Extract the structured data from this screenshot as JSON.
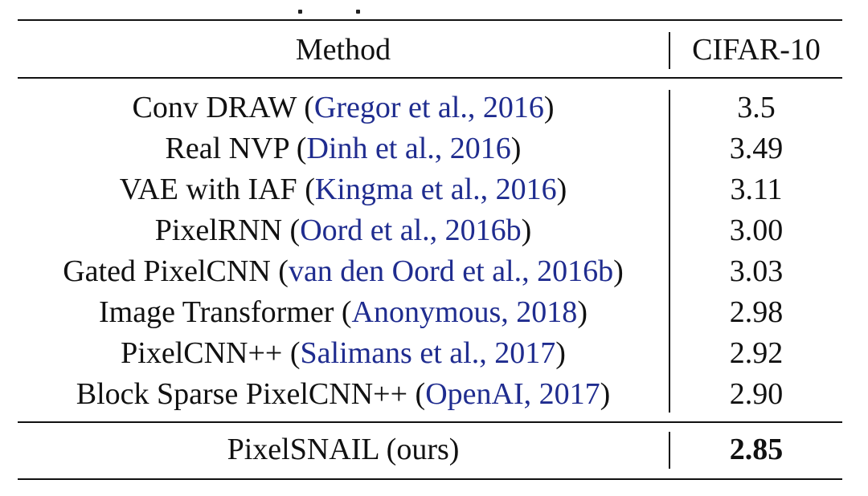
{
  "table": {
    "header": {
      "method": "Method",
      "dataset": "CIFAR-10"
    },
    "rows": [
      {
        "method": "Conv DRAW",
        "citation": "Gregor et al., 2016",
        "score": "3.5"
      },
      {
        "method": "Real NVP",
        "citation": "Dinh et al., 2016",
        "score": "3.49"
      },
      {
        "method": "VAE with IAF",
        "citation": "Kingma et al., 2016",
        "score": "3.11"
      },
      {
        "method": "PixelRNN",
        "citation": "Oord et al., 2016b",
        "score": "3.00"
      },
      {
        "method": "Gated PixelCNN",
        "citation": "van den Oord et al., 2016b",
        "score": "3.03"
      },
      {
        "method": "Image Transformer",
        "citation": "Anonymous, 2018",
        "score": "2.98"
      },
      {
        "method": "PixelCNN++",
        "citation": "Salimans et al., 2017",
        "score": "2.92"
      },
      {
        "method": "Block Sparse PixelCNN++",
        "citation": "OpenAI, 2017",
        "score": "2.90"
      }
    ],
    "final": {
      "method": "PixelSNAIL (ours)",
      "score": "2.85"
    },
    "citation_color": "#1f2c8f"
  }
}
